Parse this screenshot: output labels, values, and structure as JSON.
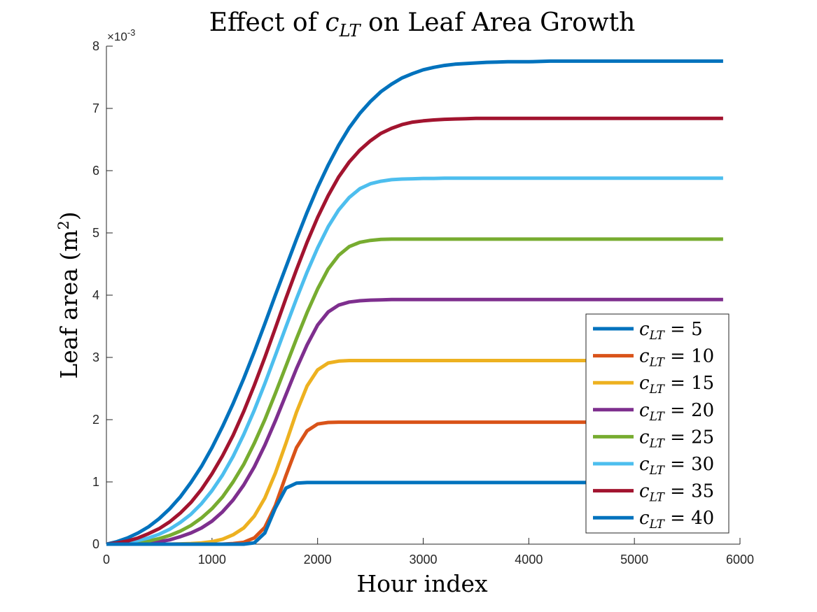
{
  "chart_data": {
    "type": "line",
    "title": {
      "prefix": "Effect of ",
      "symbol": "c",
      "subscript": "LT",
      "suffix": " on Leaf Area Growth"
    },
    "xlabel": "Hour index",
    "ylabel": {
      "text": "Leaf area (m",
      "sup": "2",
      "close": ")"
    },
    "xlim": [
      0,
      6000
    ],
    "ylim": [
      0,
      8
    ],
    "y_exponent": "×10",
    "y_exponent_sup": "-3",
    "x_ticks": [
      0,
      1000,
      2000,
      3000,
      4000,
      5000,
      6000
    ],
    "y_ticks": [
      0,
      1,
      2,
      3,
      4,
      5,
      6,
      7,
      8
    ],
    "grid": false,
    "legend_position": "lower-right",
    "x": [
      0,
      100,
      200,
      300,
      400,
      500,
      600,
      700,
      800,
      900,
      1000,
      1100,
      1200,
      1300,
      1400,
      1500,
      1600,
      1700,
      1800,
      1900,
      2000,
      2100,
      2200,
      2300,
      2400,
      2500,
      2600,
      2700,
      2800,
      2900,
      3000,
      3100,
      3200,
      3300,
      3400,
      3500,
      3600,
      3700,
      3800,
      3900,
      4000,
      4200,
      4400,
      4600,
      4800,
      5000,
      5200,
      5400,
      5600,
      5840
    ],
    "series": [
      {
        "name": "5",
        "color": "#0072BD",
        "values": [
          0,
          0.04,
          0.1,
          0.18,
          0.28,
          0.41,
          0.57,
          0.76,
          0.99,
          1.25,
          1.55,
          1.89,
          2.26,
          2.66,
          3.09,
          3.54,
          4.0,
          4.45,
          4.9,
          5.33,
          5.73,
          6.09,
          6.41,
          6.69,
          6.92,
          7.11,
          7.27,
          7.39,
          7.49,
          7.56,
          7.62,
          7.66,
          7.69,
          7.71,
          7.72,
          7.73,
          7.74,
          7.745,
          7.75,
          7.75,
          7.75,
          7.76,
          7.76,
          7.76,
          7.76,
          7.76,
          7.76,
          7.76,
          7.76,
          7.76
        ]
      },
      {
        "name": "10",
        "color": "#D95319",
        "values": [
          0,
          0,
          0,
          0,
          0,
          0,
          0,
          0,
          0,
          0,
          0,
          0,
          0.01,
          0.03,
          0.1,
          0.27,
          0.62,
          1.1,
          1.55,
          1.82,
          1.93,
          1.955,
          1.96,
          1.96,
          1.96,
          1.96,
          1.96,
          1.96,
          1.96,
          1.96,
          1.96,
          1.96,
          1.96,
          1.96,
          1.96,
          1.96,
          1.96,
          1.96,
          1.96,
          1.96,
          1.96,
          1.96,
          1.96,
          1.96,
          1.96,
          1.96,
          1.96,
          1.96,
          1.96,
          1.96
        ]
      },
      {
        "name": "15",
        "color": "#EDB120",
        "values": [
          0,
          0,
          0,
          0,
          0,
          0,
          0,
          0.005,
          0.01,
          0.02,
          0.04,
          0.08,
          0.15,
          0.26,
          0.45,
          0.74,
          1.14,
          1.62,
          2.12,
          2.54,
          2.8,
          2.91,
          2.94,
          2.95,
          2.95,
          2.95,
          2.95,
          2.95,
          2.95,
          2.95,
          2.95,
          2.95,
          2.95,
          2.95,
          2.95,
          2.95,
          2.95,
          2.95,
          2.95,
          2.95,
          2.95,
          2.95,
          2.95,
          2.95,
          2.95,
          2.95,
          2.95,
          2.95,
          2.95,
          2.95
        ]
      },
      {
        "name": "20",
        "color": "#7E2F8E",
        "values": [
          0,
          0,
          0.005,
          0.01,
          0.02,
          0.04,
          0.07,
          0.12,
          0.18,
          0.26,
          0.37,
          0.52,
          0.71,
          0.95,
          1.24,
          1.59,
          1.98,
          2.4,
          2.82,
          3.2,
          3.52,
          3.73,
          3.84,
          3.89,
          3.91,
          3.92,
          3.925,
          3.93,
          3.93,
          3.93,
          3.93,
          3.93,
          3.93,
          3.93,
          3.93,
          3.93,
          3.93,
          3.93,
          3.93,
          3.93,
          3.93,
          3.93,
          3.93,
          3.93,
          3.93,
          3.93,
          3.93,
          3.93,
          3.93,
          3.93
        ]
      },
      {
        "name": "25",
        "color": "#77AC30",
        "values": [
          0,
          0.005,
          0.01,
          0.03,
          0.05,
          0.09,
          0.14,
          0.21,
          0.3,
          0.42,
          0.57,
          0.76,
          1.0,
          1.28,
          1.62,
          2.0,
          2.42,
          2.86,
          3.3,
          3.72,
          4.1,
          4.42,
          4.64,
          4.78,
          4.85,
          4.88,
          4.895,
          4.9,
          4.9,
          4.9,
          4.9,
          4.9,
          4.9,
          4.9,
          4.9,
          4.9,
          4.9,
          4.9,
          4.9,
          4.9,
          4.9,
          4.9,
          4.9,
          4.9,
          4.9,
          4.9,
          4.9,
          4.9,
          4.9,
          4.9
        ]
      },
      {
        "name": "30",
        "color": "#4DBEEE",
        "values": [
          0,
          0.01,
          0.03,
          0.06,
          0.1,
          0.16,
          0.24,
          0.35,
          0.48,
          0.65,
          0.86,
          1.11,
          1.41,
          1.76,
          2.15,
          2.58,
          3.03,
          3.49,
          3.94,
          4.37,
          4.76,
          5.1,
          5.37,
          5.57,
          5.71,
          5.79,
          5.83,
          5.855,
          5.865,
          5.87,
          5.875,
          5.875,
          5.88,
          5.88,
          5.88,
          5.88,
          5.88,
          5.88,
          5.88,
          5.88,
          5.88,
          5.88,
          5.88,
          5.88,
          5.88,
          5.88,
          5.88,
          5.88,
          5.88,
          5.88
        ]
      },
      {
        "name": "35",
        "color": "#A2142F",
        "values": [
          0,
          0.02,
          0.05,
          0.1,
          0.17,
          0.25,
          0.36,
          0.5,
          0.67,
          0.88,
          1.13,
          1.42,
          1.75,
          2.13,
          2.55,
          3.0,
          3.47,
          3.95,
          4.41,
          4.85,
          5.25,
          5.6,
          5.9,
          6.14,
          6.33,
          6.48,
          6.6,
          6.68,
          6.74,
          6.78,
          6.8,
          6.815,
          6.825,
          6.83,
          6.835,
          6.84,
          6.84,
          6.84,
          6.84,
          6.84,
          6.84,
          6.84,
          6.84,
          6.84,
          6.84,
          6.84,
          6.84,
          6.84,
          6.84,
          6.84
        ]
      },
      {
        "name": "40",
        "color": "#0072BD",
        "values": [
          0,
          0,
          0,
          0,
          0,
          0,
          0,
          0,
          0,
          0,
          0,
          0,
          0,
          0,
          0.02,
          0.18,
          0.58,
          0.9,
          0.98,
          0.99,
          0.99,
          0.99,
          0.99,
          0.99,
          0.99,
          0.99,
          0.99,
          0.99,
          0.99,
          0.99,
          0.99,
          0.99,
          0.99,
          0.99,
          0.99,
          0.99,
          0.99,
          0.99,
          0.99,
          0.99,
          0.99,
          0.99,
          0.99,
          0.99,
          0.99,
          0.99,
          0.99,
          0.99,
          0.99,
          0.99
        ]
      }
    ],
    "legend": {
      "symbol": "c",
      "subscript": "LT",
      "equals": " = "
    }
  }
}
